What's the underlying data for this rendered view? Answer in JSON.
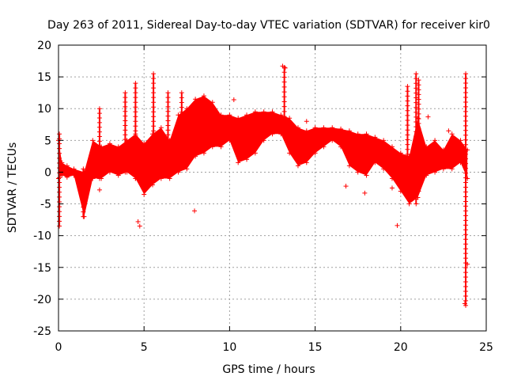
{
  "chart_data": {
    "type": "scatter",
    "title": "Day 263 of 2011, Sidereal Day-to-day VTEC variation (SDTVAR) for receiver kir0",
    "xlabel": "GPS time / hours",
    "ylabel": "SDTVAR / TECUs",
    "xlim": [
      0,
      25
    ],
    "ylim": [
      -25,
      20
    ],
    "xticks": [
      0,
      5,
      10,
      15,
      20,
      25
    ],
    "yticks": [
      -25,
      -20,
      -15,
      -10,
      -5,
      0,
      5,
      10,
      15,
      20
    ],
    "grid": true,
    "marker": "+",
    "color": "#ff0000",
    "band": [
      [
        0.0,
        -1.0,
        5.0
      ],
      [
        0.2,
        -0.5,
        1.5
      ],
      [
        0.5,
        -0.8,
        1.0
      ],
      [
        0.9,
        -0.5,
        0.5
      ],
      [
        1.5,
        -7.0,
        0.0
      ],
      [
        2.0,
        -1.0,
        5.0
      ],
      [
        2.5,
        -1.0,
        4.0
      ],
      [
        3.0,
        0.0,
        4.5
      ],
      [
        3.5,
        -0.5,
        4.0
      ],
      [
        4.0,
        0.0,
        5.0
      ],
      [
        4.5,
        -1.0,
        6.0
      ],
      [
        5.0,
        -3.5,
        4.5
      ],
      [
        5.5,
        -2.0,
        6.0
      ],
      [
        6.0,
        -1.0,
        7.0
      ],
      [
        6.5,
        -1.0,
        5.0
      ],
      [
        7.0,
        0.0,
        9.0
      ],
      [
        7.5,
        0.5,
        10.0
      ],
      [
        8.0,
        2.5,
        11.5
      ],
      [
        8.5,
        3.0,
        12.0
      ],
      [
        9.0,
        4.0,
        11.0
      ],
      [
        9.5,
        4.0,
        9.0
      ],
      [
        10.0,
        5.0,
        9.0
      ],
      [
        10.5,
        1.5,
        8.5
      ],
      [
        11.0,
        2.0,
        9.0
      ],
      [
        11.5,
        3.0,
        9.5
      ],
      [
        12.0,
        5.0,
        9.5
      ],
      [
        12.5,
        6.0,
        9.5
      ],
      [
        13.0,
        6.0,
        9.0
      ],
      [
        13.5,
        3.0,
        8.5
      ],
      [
        14.0,
        1.0,
        7.0
      ],
      [
        14.5,
        1.5,
        6.5
      ],
      [
        15.0,
        3.0,
        7.0
      ],
      [
        15.5,
        4.0,
        7.0
      ],
      [
        16.0,
        5.0,
        7.0
      ],
      [
        16.5,
        4.0,
        6.8
      ],
      [
        17.0,
        1.0,
        6.5
      ],
      [
        17.5,
        0.0,
        6.0
      ],
      [
        18.0,
        -0.5,
        6.0
      ],
      [
        18.5,
        1.5,
        5.5
      ],
      [
        19.0,
        0.5,
        5.0
      ],
      [
        19.5,
        -1.0,
        4.0
      ],
      [
        20.0,
        -3.0,
        3.0
      ],
      [
        20.5,
        -5.0,
        2.5
      ],
      [
        21.0,
        -4.0,
        8.5
      ],
      [
        21.5,
        -0.5,
        4.0
      ],
      [
        22.0,
        0.0,
        5.0
      ],
      [
        22.5,
        0.5,
        3.5
      ],
      [
        23.0,
        0.5,
        6.0
      ],
      [
        23.5,
        1.5,
        5.0
      ],
      [
        23.9,
        -1.0,
        3.5
      ]
    ],
    "spikes": [
      [
        0.05,
        -8.5,
        6.0
      ],
      [
        1.45,
        -7.0,
        0.5
      ],
      [
        2.4,
        -1.0,
        10.0
      ],
      [
        3.9,
        0.0,
        12.5
      ],
      [
        4.5,
        -1.0,
        14.0
      ],
      [
        5.55,
        -1.0,
        15.5
      ],
      [
        6.4,
        0.0,
        12.5
      ],
      [
        7.2,
        1.0,
        12.5
      ],
      [
        13.2,
        8.0,
        16.5
      ],
      [
        20.4,
        -1.0,
        13.5
      ],
      [
        20.9,
        -5.0,
        15.5
      ],
      [
        21.05,
        -3.0,
        14.5
      ],
      [
        23.8,
        -21.0,
        15.5
      ]
    ],
    "outliers": [
      [
        2.4,
        -2.8
      ],
      [
        4.65,
        -7.8
      ],
      [
        4.75,
        -8.5
      ],
      [
        7.95,
        -6.1
      ],
      [
        10.25,
        11.4
      ],
      [
        13.1,
        16.7
      ],
      [
        13.25,
        16.4
      ],
      [
        14.5,
        8.0
      ],
      [
        16.8,
        -2.2
      ],
      [
        17.9,
        -3.3
      ],
      [
        19.8,
        -8.4
      ],
      [
        19.5,
        -2.5
      ],
      [
        23.75,
        -20.7
      ],
      [
        23.9,
        -14.5
      ],
      [
        21.6,
        8.7
      ],
      [
        22.8,
        6.5
      ]
    ]
  }
}
